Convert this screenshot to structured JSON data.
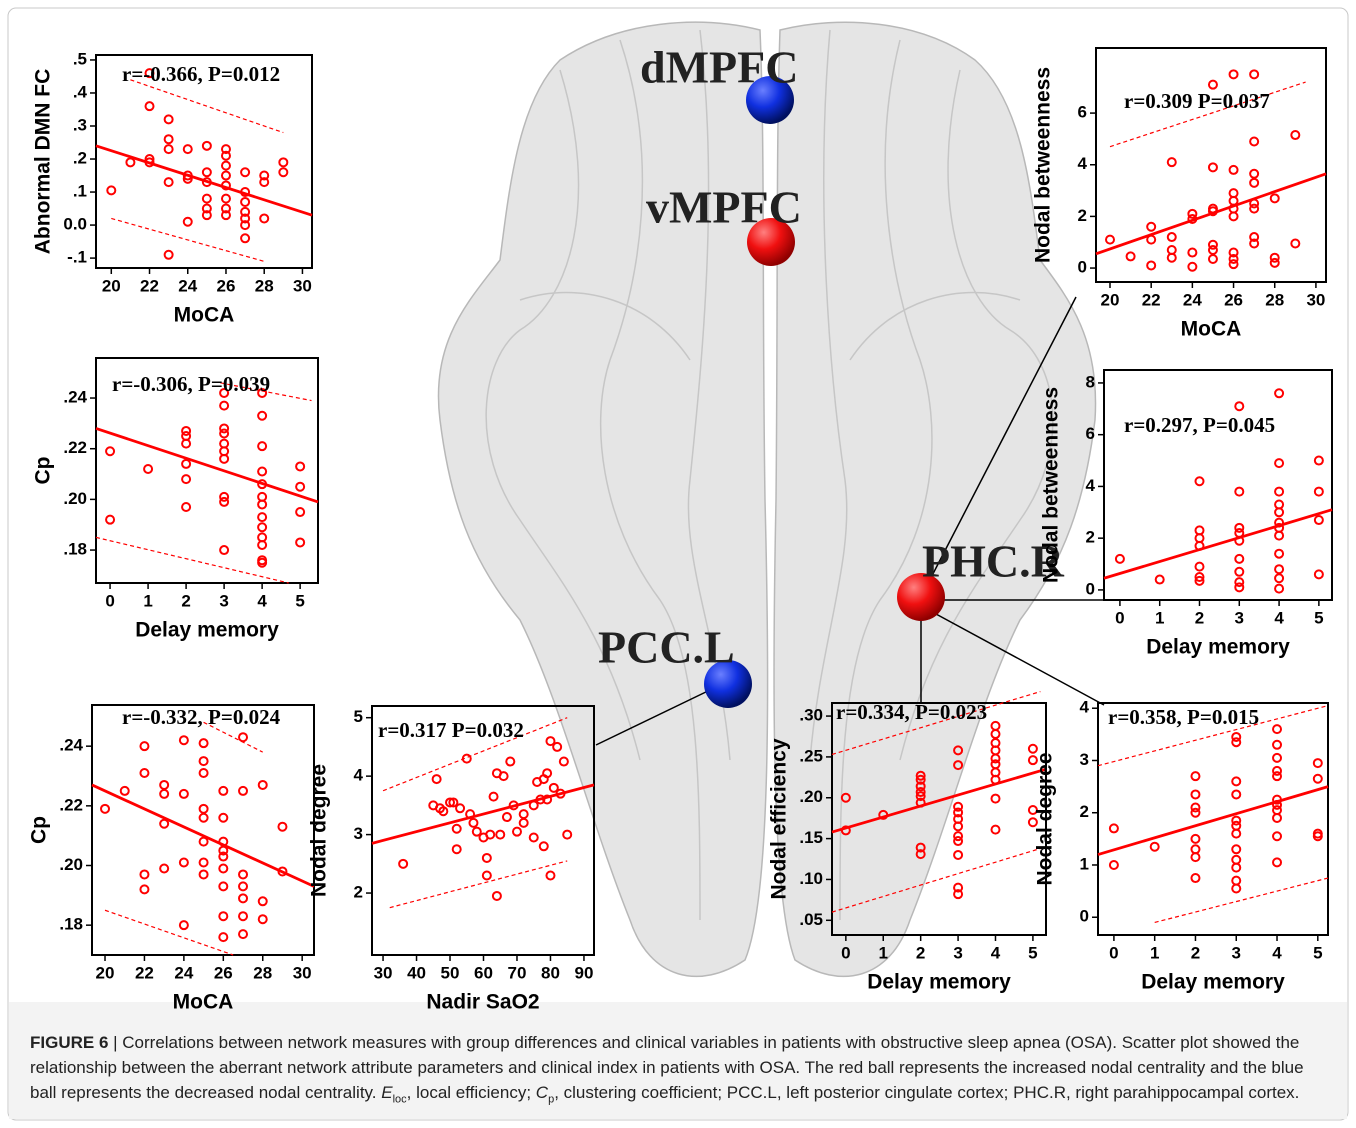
{
  "brain_labels": [
    "dMPFC",
    "vMPFC",
    "PCC.L",
    "PHC.R"
  ],
  "caption": {
    "label": "FIGURE 6",
    "text_1": " | Correlations between network measures with group differences and clinical variables in patients with obstructive sleep apnea (OSA). Scatter plot showed the relationship between the aberrant network attribute parameters and clinical index in patients with OSA. The red ball represents the increased nodal centrality and the blue ball represents the decreased nodal centrality. ",
    "e_symbol": "E",
    "e_sub": "loc",
    "text_2": ", local efficiency; ",
    "c_symbol": "C",
    "c_sub": "p",
    "text_3": ", clustering coefficient; PCC.L, left posterior cingulate cortex; PHC.R, right parahippocampal cortex."
  },
  "chart_data": [
    {
      "type": "scatter",
      "annotation": "r=-0.366, P=0.012",
      "x_label": "MoCA",
      "y_label": "Abnormal DMN FC",
      "color": "#ff0000",
      "xlim": [
        19.2,
        30.5
      ],
      "ylim": [
        -0.13,
        0.515
      ],
      "xticks": [
        20,
        22,
        24,
        26,
        28,
        30
      ],
      "yticks": [
        {
          "value": 0.5,
          "label": ".5"
        },
        {
          "value": 0.4,
          "label": ".4"
        },
        {
          "value": 0.3,
          "label": ".3"
        },
        {
          "value": 0.2,
          "label": ".2"
        },
        {
          "value": 0.1,
          "label": ".1"
        },
        {
          "value": 0,
          "label": "0.0"
        },
        {
          "value": -0.1,
          "label": "-.1"
        }
      ],
      "x": [
        20,
        21,
        22,
        22,
        22,
        22,
        23,
        23,
        23,
        23,
        23,
        24,
        24,
        24,
        24,
        25,
        25,
        25,
        25,
        25,
        25,
        26,
        26,
        26,
        26,
        26,
        26,
        26,
        26,
        27,
        27,
        27,
        27,
        27,
        27,
        27,
        28,
        28,
        28,
        29,
        29
      ],
      "y": [
        0.105,
        0.19,
        0.46,
        0.36,
        0.2,
        0.19,
        0.32,
        0.26,
        0.23,
        0.13,
        -0.09,
        0.23,
        0.15,
        0.14,
        0.01,
        0.24,
        0.16,
        0.13,
        0.08,
        0.05,
        0.03,
        0.23,
        0.21,
        0.18,
        0.15,
        0.12,
        0.08,
        0.05,
        0.03,
        0.16,
        0.1,
        0.07,
        0.04,
        0.02,
        0,
        -0.04,
        0.15,
        0.13,
        0.02,
        0.19,
        0.16
      ],
      "trend": {
        "x": [
          19.2,
          30.5
        ],
        "y": [
          0.24,
          0.03
        ]
      },
      "ci_upper": {
        "x": [
          21,
          29
        ],
        "y": [
          0.44,
          0.28
        ]
      },
      "ci_lower": {
        "x": [
          20,
          28
        ],
        "y": [
          0.02,
          -0.11
        ]
      }
    },
    {
      "type": "scatter",
      "annotation": "r=-0.306, P=0.039",
      "x_label": "Delay memory",
      "y_label": "Cp",
      "color": "#ff0000",
      "xlim": [
        -0.37,
        5.47
      ],
      "ylim": [
        0.167,
        0.2558
      ],
      "xticks": [
        0,
        1,
        2,
        3,
        4,
        5
      ],
      "yticks": [
        {
          "value": 0.24,
          "label": ".24"
        },
        {
          "value": 0.22,
          "label": ".22"
        },
        {
          "value": 0.2,
          "label": ".20"
        },
        {
          "value": 0.18,
          "label": ".18"
        }
      ],
      "x": [
        0,
        0,
        1,
        2,
        2,
        2,
        2,
        2,
        2,
        3,
        3,
        3,
        3,
        3,
        3,
        3,
        3,
        3,
        3,
        4,
        4,
        4,
        4,
        4,
        4,
        4,
        4,
        4,
        4,
        4,
        4,
        4,
        5,
        5,
        5,
        5
      ],
      "y": [
        0.219,
        0.192,
        0.212,
        0.227,
        0.225,
        0.222,
        0.214,
        0.208,
        0.197,
        0.242,
        0.237,
        0.228,
        0.226,
        0.222,
        0.219,
        0.216,
        0.201,
        0.199,
        0.18,
        0.242,
        0.233,
        0.221,
        0.211,
        0.206,
        0.201,
        0.198,
        0.193,
        0.189,
        0.185,
        0.182,
        0.176,
        0.175,
        0.213,
        0.205,
        0.195,
        0.183
      ],
      "trend": {
        "x": [
          -0.37,
          5.47
        ],
        "y": [
          0.228,
          0.199
        ]
      },
      "ci_upper": {
        "x": [
          2.9,
          5.3
        ],
        "y": [
          0.246,
          0.239
        ]
      },
      "ci_lower": {
        "x": [
          -0.37,
          4.7
        ],
        "y": [
          0.185,
          0.167
        ]
      }
    },
    {
      "type": "scatter",
      "annotation": "r=-0.332, P=0.024",
      "x_label": "MoCA",
      "y_label": "Cp",
      "color": "#ff0000",
      "xlim": [
        19.34,
        30.6
      ],
      "ylim": [
        0.17,
        0.2538
      ],
      "xticks": [
        20,
        22,
        24,
        26,
        28,
        30
      ],
      "yticks": [
        {
          "value": 0.24,
          "label": ".24"
        },
        {
          "value": 0.22,
          "label": ".22"
        },
        {
          "value": 0.2,
          "label": ".20"
        },
        {
          "value": 0.18,
          "label": ".18"
        }
      ],
      "x": [
        20,
        21,
        22,
        22,
        22,
        22,
        23,
        23,
        23,
        23,
        24,
        24,
        24,
        24,
        25,
        25,
        25,
        25,
        25,
        25,
        25,
        25,
        26,
        26,
        26,
        26,
        26,
        26,
        26,
        26,
        26,
        27,
        27,
        27,
        27,
        27,
        27,
        27,
        28,
        28,
        28,
        29,
        29
      ],
      "y": [
        0.219,
        0.225,
        0.24,
        0.231,
        0.197,
        0.192,
        0.227,
        0.224,
        0.214,
        0.199,
        0.242,
        0.224,
        0.201,
        0.18,
        0.241,
        0.235,
        0.231,
        0.219,
        0.216,
        0.208,
        0.201,
        0.197,
        0.225,
        0.216,
        0.208,
        0.205,
        0.203,
        0.199,
        0.193,
        0.183,
        0.176,
        0.243,
        0.225,
        0.197,
        0.193,
        0.189,
        0.183,
        0.177,
        0.227,
        0.188,
        0.182,
        0.213,
        0.198
      ],
      "trend": {
        "x": [
          19.34,
          30.6
        ],
        "y": [
          0.227,
          0.193
        ]
      },
      "ci_upper": {
        "x": [
          25,
          28
        ],
        "y": [
          0.248,
          0.238
        ]
      },
      "ci_lower": {
        "x": [
          20,
          26.5
        ],
        "y": [
          0.185,
          0.17
        ]
      }
    },
    {
      "type": "scatter",
      "annotation": "r=0.317 P=0.032",
      "x_label": "Nadir SaO2",
      "y_label": "Nodal degree",
      "color": "#ff0000",
      "xlim": [
        26.7,
        93
      ],
      "ylim": [
        0.94,
        5.2
      ],
      "xticks": [
        30,
        40,
        50,
        60,
        70,
        80,
        90
      ],
      "yticks": [
        2,
        3,
        4,
        5
      ],
      "x": [
        36,
        45,
        46,
        47,
        48,
        50,
        51,
        52,
        52,
        53,
        55,
        56,
        57,
        58,
        60,
        61,
        61,
        62,
        63,
        64,
        64,
        65,
        66,
        67,
        68,
        69,
        70,
        72,
        72,
        75,
        75,
        76,
        77,
        78,
        78,
        79,
        79,
        80,
        81,
        80,
        82,
        84,
        85,
        83
      ],
      "y": [
        2.5,
        3.5,
        3.95,
        3.45,
        3.4,
        3.55,
        3.55,
        3.1,
        2.75,
        3.45,
        4.3,
        3.35,
        3.2,
        3.05,
        2.95,
        2.6,
        2.3,
        3,
        3.65,
        4.05,
        1.95,
        3,
        4,
        3.3,
        4.25,
        3.5,
        3.05,
        3.2,
        3.35,
        3.5,
        2.95,
        3.9,
        3.6,
        3.95,
        2.8,
        4.05,
        3.6,
        4.6,
        3.8,
        2.3,
        4.5,
        4.25,
        3,
        3.7
      ],
      "trend": {
        "x": [
          26.7,
          93
        ],
        "y": [
          2.85,
          3.85
        ]
      },
      "ci_upper": {
        "x": [
          30,
          85
        ],
        "y": [
          3.75,
          5
        ]
      },
      "ci_lower": {
        "x": [
          32,
          85
        ],
        "y": [
          1.75,
          2.55
        ]
      }
    },
    {
      "type": "scatter",
      "annotation": "r=0.309 P=0.037",
      "x_label": "MoCA",
      "y_label": "Nodal betweenness",
      "color": "#ff0000",
      "xlim": [
        19.32,
        30.49
      ],
      "ylim": [
        -0.54,
        8.52
      ],
      "xticks": [
        20,
        22,
        24,
        26,
        28,
        30
      ],
      "yticks": [
        0,
        2,
        4,
        6
      ],
      "x": [
        20,
        21,
        22,
        22,
        22,
        23,
        23,
        23,
        23,
        24,
        24,
        24,
        24,
        25,
        25,
        25,
        25,
        25,
        25,
        25,
        26,
        26,
        26,
        26,
        26,
        26,
        26,
        26,
        26,
        27,
        27,
        27,
        27,
        27,
        27,
        27,
        27,
        28,
        28,
        28,
        29,
        29
      ],
      "y": [
        1.1,
        0.45,
        1.6,
        1.1,
        0.1,
        4.1,
        1.2,
        0.7,
        0.4,
        2.1,
        1.9,
        0.6,
        0.05,
        7.1,
        3.9,
        2.3,
        2.2,
        0.9,
        0.7,
        0.35,
        7.5,
        3.8,
        2.9,
        2.6,
        2.3,
        2,
        0.6,
        0.35,
        0.15,
        7.5,
        4.9,
        3.65,
        3.3,
        2.5,
        2.3,
        1.2,
        0.95,
        2.7,
        0.4,
        0.2,
        5.15,
        0.95
      ],
      "trend": {
        "x": [
          19.32,
          30.49
        ],
        "y": [
          0.55,
          3.65
        ]
      },
      "ci_upper": {
        "x": [
          20,
          29.5
        ],
        "y": [
          4.7,
          7.2
        ]
      }
    },
    {
      "type": "scatter",
      "annotation": "r=0.297, P=0.045",
      "x_label": "Delay memory",
      "y_label": "Nodal betweenness",
      "color": "#ff0000",
      "xlim": [
        -0.4,
        5.33
      ],
      "ylim": [
        -0.39,
        8.5
      ],
      "xticks": [
        0,
        1,
        2,
        3,
        4,
        5
      ],
      "yticks": [
        0,
        2,
        4,
        6,
        8
      ],
      "x": [
        0,
        1,
        2,
        2,
        2,
        2,
        2,
        2,
        2,
        3,
        3,
        3,
        3,
        3,
        3,
        3,
        3,
        3,
        4,
        4,
        4,
        4,
        4,
        4,
        4,
        4,
        4,
        4,
        4,
        4,
        5,
        5,
        5,
        5
      ],
      "y": [
        1.2,
        0.4,
        4.2,
        2.3,
        2,
        1.7,
        0.9,
        0.5,
        0.35,
        7.1,
        3.8,
        2.4,
        2.2,
        1.9,
        1.2,
        0.7,
        0.3,
        0.1,
        7.6,
        4.9,
        3.8,
        3.3,
        3,
        2.6,
        2.4,
        2.1,
        1.4,
        0.8,
        0.45,
        0.05,
        5,
        3.8,
        2.7,
        0.6
      ],
      "trend": {
        "x": [
          -0.4,
          5.33
        ],
        "y": [
          0.45,
          3.1
        ]
      }
    },
    {
      "type": "scatter",
      "annotation": "r=0.334, P=0.023",
      "x_label": "Delay memory",
      "y_label": "Nodal efficiency",
      "color": "#ff0000",
      "xlim": [
        -0.37,
        5.35
      ],
      "ylim": [
        0.032,
        0.316
      ],
      "xticks": [
        0,
        1,
        2,
        3,
        4,
        5
      ],
      "yticks": [
        {
          "value": 0.3,
          "label": ".30"
        },
        {
          "value": 0.25,
          "label": ".25"
        },
        {
          "value": 0.2,
          "label": ".20"
        },
        {
          "value": 0.15,
          "label": ".15"
        },
        {
          "value": 0.1,
          "label": ".10"
        },
        {
          "value": 0.05,
          "label": ".05"
        }
      ],
      "x": [
        0,
        0,
        1,
        2,
        2,
        2,
        2,
        2,
        2,
        2,
        2,
        3,
        3,
        3,
        3,
        3,
        3,
        3,
        3,
        3,
        3,
        3,
        4,
        4,
        4,
        4,
        4,
        4,
        4,
        4,
        4,
        4,
        5,
        5,
        5,
        5
      ],
      "y": [
        0.2,
        0.16,
        0.179,
        0.227,
        0.222,
        0.214,
        0.207,
        0.202,
        0.194,
        0.139,
        0.131,
        0.258,
        0.24,
        0.189,
        0.182,
        0.174,
        0.165,
        0.153,
        0.147,
        0.13,
        0.09,
        0.082,
        0.288,
        0.278,
        0.267,
        0.258,
        0.248,
        0.241,
        0.231,
        0.222,
        0.199,
        0.161,
        0.26,
        0.246,
        0.185,
        0.17
      ],
      "trend": {
        "x": [
          -0.37,
          5.35
        ],
        "y": [
          0.158,
          0.235
        ]
      },
      "ci_upper": {
        "x": [
          -0.37,
          5.2
        ],
        "y": [
          0.253,
          0.33
        ]
      },
      "ci_lower": {
        "x": [
          -0.37,
          5.35
        ],
        "y": [
          0.06,
          0.14
        ]
      }
    },
    {
      "type": "scatter",
      "annotation": "r=0.358, P=0.015",
      "x_label": "Delay memory",
      "y_label": "Nodal degree",
      "color": "#ff0000",
      "xlim": [
        -0.39,
        5.25
      ],
      "ylim": [
        -0.34,
        4.1
      ],
      "xticks": [
        0,
        1,
        2,
        3,
        4,
        5
      ],
      "yticks": [
        0,
        1,
        2,
        3,
        4
      ],
      "x": [
        0,
        0,
        1,
        2,
        2,
        2,
        2,
        2,
        2,
        2,
        2,
        3,
        3,
        3,
        3,
        3,
        3,
        3,
        3,
        3,
        3,
        3,
        3,
        4,
        4,
        4,
        4,
        4,
        4,
        4,
        4,
        4,
        4,
        4,
        5,
        5,
        5,
        5
      ],
      "y": [
        1.7,
        1,
        1.35,
        2.7,
        2.35,
        2.1,
        2,
        1.5,
        1.3,
        1.15,
        0.75,
        3.45,
        3.35,
        2.6,
        2.35,
        1.85,
        1.75,
        1.6,
        1.3,
        1.1,
        0.95,
        0.7,
        0.55,
        3.6,
        3.3,
        3.05,
        2.8,
        2.7,
        2.25,
        2.15,
        2.05,
        1.9,
        1.55,
        1.05,
        2.95,
        2.65,
        1.6,
        1.55
      ],
      "trend": {
        "x": [
          -0.39,
          5.25
        ],
        "y": [
          1.2,
          2.5
        ]
      },
      "ci_upper": {
        "x": [
          -0.39,
          5.25
        ],
        "y": [
          2.9,
          4.05
        ]
      },
      "ci_lower": {
        "x": [
          1,
          5.25
        ],
        "y": [
          -0.1,
          0.75
        ]
      }
    }
  ]
}
